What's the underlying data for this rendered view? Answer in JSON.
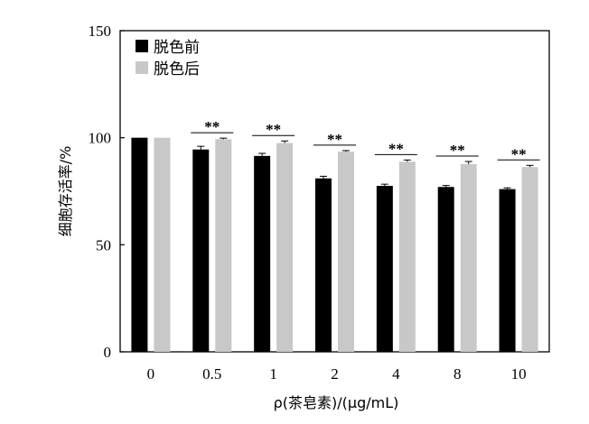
{
  "chart_data": {
    "type": "bar",
    "xlabel": "ρ(茶皂素)/(μg/mL)",
    "ylabel": "细胞存活率/%",
    "ylim": [
      0,
      150
    ],
    "yticks": [
      "0",
      "50",
      "100",
      "150"
    ],
    "categories": [
      "0",
      "0.5",
      "1",
      "2",
      "4",
      "8",
      "10"
    ],
    "series": [
      {
        "name": "脱色前",
        "color": "#000000",
        "values": [
          100,
          94.5,
          91.5,
          81,
          77.5,
          77,
          76
        ],
        "errors": [
          0,
          1.5,
          1.2,
          1.0,
          0.8,
          0.7,
          0.6
        ]
      },
      {
        "name": "脱色后",
        "color": "#c8c8c8",
        "values": [
          100,
          99.3,
          97.5,
          93.5,
          88.8,
          87.7,
          86.3
        ],
        "errors": [
          0,
          0.5,
          1.0,
          0.5,
          0.8,
          1.2,
          0.8
        ]
      }
    ],
    "significance": [
      "",
      "**",
      "**",
      "**",
      "**",
      "**",
      "**"
    ],
    "legend_position": "top-left",
    "grid": false
  }
}
